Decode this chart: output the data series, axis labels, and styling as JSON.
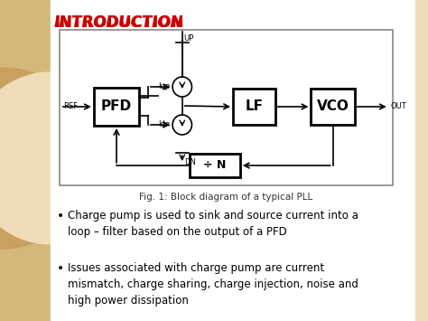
{
  "title": "INTRODUCTION",
  "title_color": "#cc0000",
  "background_color": "#f0ddb8",
  "fig_caption": "Fig. 1: Block diagram of a typical PLL",
  "bullet1": "Charge pump is used to sink and source current into a\nloop – filter based on the output of a PFD",
  "bullet2": "Issues associated with charge pump are current\nmismatch, charge sharing, charge injection, noise and\nhigh power dissipation",
  "left_strip_color": "#c8a878",
  "diag_border": "#888888",
  "diag_bg": "#ffffff"
}
